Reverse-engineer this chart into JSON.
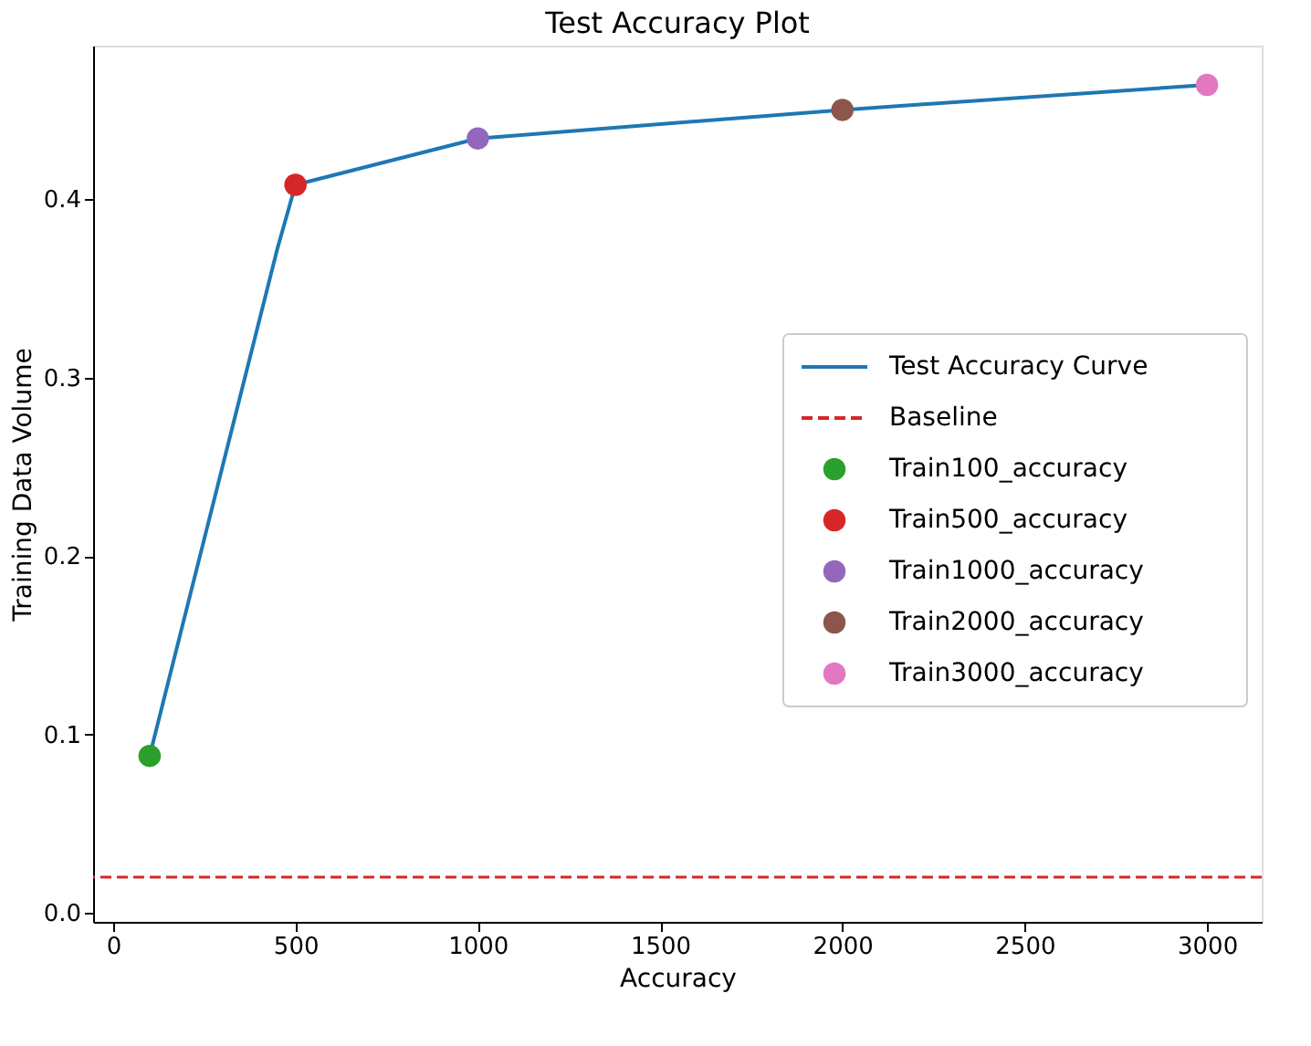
{
  "chart_data": {
    "type": "line",
    "title": "Test Accuracy Plot",
    "xlabel": "Accuracy",
    "ylabel": "Training Data Volume",
    "xlim": [
      -55,
      3150
    ],
    "xticks": [
      0,
      500,
      1000,
      1500,
      2000,
      2500,
      3000
    ],
    "ylim": [
      -0.005,
      0.486
    ],
    "yticks": [
      {
        "value": 0,
        "label": "0.0"
      },
      0.1,
      0.2,
      0.3,
      0.4
    ],
    "grid": false,
    "legend": "right",
    "series": [
      {
        "name": "Test Accuracy Curve",
        "color": "#1f77b4",
        "x": [
          100,
          450,
          500,
          1000,
          2000,
          3000
        ],
        "values": [
          0.088,
          0.372,
          0.408,
          0.434,
          0.45,
          0.464
        ]
      },
      {
        "name": "Train100_accuracy",
        "type": "scatter",
        "marker": "circle",
        "color": "#2ca02c",
        "x": [
          100
        ],
        "values": [
          0.088
        ]
      },
      {
        "name": "Train500_accuracy",
        "type": "scatter",
        "marker": "circle",
        "color": "#d62728",
        "x": [
          500
        ],
        "values": [
          0.408
        ]
      },
      {
        "name": "Train1000_accuracy",
        "type": "scatter",
        "marker": "circle",
        "color": "#9467bd",
        "x": [
          1000
        ],
        "values": [
          0.434
        ]
      },
      {
        "name": "Train2000_accuracy",
        "type": "scatter",
        "marker": "circle",
        "color": "#8c564b",
        "x": [
          2000
        ],
        "values": [
          0.45
        ]
      },
      {
        "name": "Train3000_accuracy",
        "type": "scatter",
        "marker": "circle",
        "color": "#e377c2",
        "x": [
          3000
        ],
        "values": [
          0.464
        ]
      }
    ],
    "ref_lines": [
      {
        "axis": "y",
        "value": 0.02,
        "label": "Baseline",
        "color": "#d62728",
        "line_style": "dashed"
      }
    ]
  }
}
